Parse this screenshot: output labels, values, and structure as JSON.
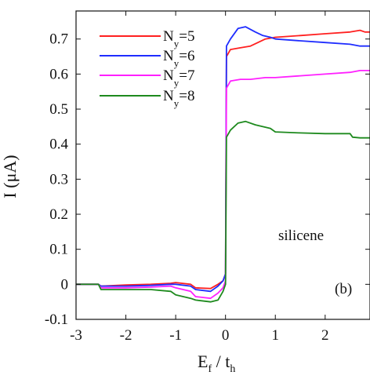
{
  "chart_data": {
    "type": "line",
    "xlabel": {
      "main": "E",
      "sub1": "f",
      "mid": " / t",
      "sub2": "h"
    },
    "ylabel": "I (μA)",
    "xlim": [
      -3,
      2.9
    ],
    "ylim": [
      -0.1,
      0.78
    ],
    "xticks": [
      -3,
      -2,
      -1,
      0,
      1,
      2
    ],
    "xtick_labels": [
      "-3",
      "-2",
      "-1",
      "0",
      "1",
      "2"
    ],
    "yticks": [
      -0.1,
      0,
      0.1,
      0.2,
      0.3,
      0.4,
      0.5,
      0.6,
      0.7
    ],
    "ytick_labels": [
      "-0.1",
      "0",
      "0.1",
      "0.2",
      "0.3",
      "0.4",
      "0.5",
      "0.6",
      "0.7"
    ],
    "legend_placement": "top-left",
    "annotations": [
      "silicene",
      "(b)"
    ],
    "series": [
      {
        "name": "N_y=5",
        "label_main": "N",
        "label_sub": "y",
        "label_rest": "=5",
        "color": "#ff2020",
        "x": [
          -3.0,
          -2.55,
          -2.5,
          -2.0,
          -1.5,
          -1.1,
          -1.0,
          -0.7,
          -0.6,
          -0.3,
          -0.15,
          -0.05,
          0.0,
          0.02,
          0.1,
          0.3,
          0.5,
          0.8,
          1.0,
          1.5,
          2.0,
          2.5,
          2.7,
          2.8,
          2.9
        ],
        "y": [
          0.0,
          0.0,
          -0.005,
          -0.002,
          0.0,
          0.003,
          0.005,
          0.0,
          -0.01,
          -0.012,
          0.0,
          0.01,
          0.03,
          0.65,
          0.67,
          0.675,
          0.68,
          0.7,
          0.705,
          0.71,
          0.715,
          0.72,
          0.725,
          0.72,
          0.72
        ]
      },
      {
        "name": "N_y=6",
        "label_main": "N",
        "label_sub": "y",
        "label_rest": "=6",
        "color": "#1f2dff",
        "x": [
          -3.0,
          -2.55,
          -2.5,
          -2.0,
          -1.5,
          -1.1,
          -1.0,
          -0.7,
          -0.6,
          -0.3,
          -0.15,
          -0.05,
          0.0,
          0.02,
          0.1,
          0.25,
          0.4,
          0.6,
          0.75,
          0.9,
          1.0,
          1.5,
          2.0,
          2.5,
          2.7,
          2.9
        ],
        "y": [
          0.0,
          0.0,
          -0.005,
          -0.005,
          -0.003,
          0.0,
          0.0,
          -0.005,
          -0.015,
          -0.02,
          -0.005,
          0.01,
          0.03,
          0.68,
          0.7,
          0.73,
          0.735,
          0.72,
          0.71,
          0.705,
          0.7,
          0.695,
          0.69,
          0.685,
          0.68,
          0.68
        ]
      },
      {
        "name": "N_y=7",
        "label_main": "N",
        "label_sub": "y",
        "label_rest": "=7",
        "color": "#ff20ff",
        "x": [
          -3.0,
          -2.55,
          -2.5,
          -2.0,
          -1.5,
          -1.1,
          -1.0,
          -0.7,
          -0.6,
          -0.3,
          -0.15,
          -0.05,
          0.0,
          0.02,
          0.1,
          0.3,
          0.5,
          0.8,
          1.0,
          1.5,
          2.0,
          2.5,
          2.7,
          2.9
        ],
        "y": [
          0.0,
          0.0,
          -0.01,
          -0.01,
          -0.008,
          -0.005,
          -0.01,
          -0.02,
          -0.035,
          -0.04,
          -0.025,
          -0.01,
          0.01,
          0.56,
          0.58,
          0.585,
          0.585,
          0.59,
          0.59,
          0.595,
          0.6,
          0.605,
          0.61,
          0.61
        ]
      },
      {
        "name": "N_y=8",
        "label_main": "N",
        "label_sub": "y",
        "label_rest": "=8",
        "color": "#1e8a1e",
        "x": [
          -3.0,
          -2.55,
          -2.5,
          -2.0,
          -1.5,
          -1.1,
          -1.0,
          -0.7,
          -0.6,
          -0.3,
          -0.15,
          -0.05,
          0.0,
          0.02,
          0.1,
          0.25,
          0.4,
          0.6,
          0.9,
          1.0,
          1.5,
          2.0,
          2.5,
          2.55,
          2.7,
          2.9
        ],
        "y": [
          0.0,
          0.0,
          -0.015,
          -0.015,
          -0.015,
          -0.02,
          -0.03,
          -0.04,
          -0.045,
          -0.05,
          -0.045,
          -0.02,
          0.0,
          0.42,
          0.44,
          0.46,
          0.465,
          0.455,
          0.445,
          0.435,
          0.432,
          0.43,
          0.43,
          0.42,
          0.418,
          0.418
        ]
      }
    ]
  }
}
